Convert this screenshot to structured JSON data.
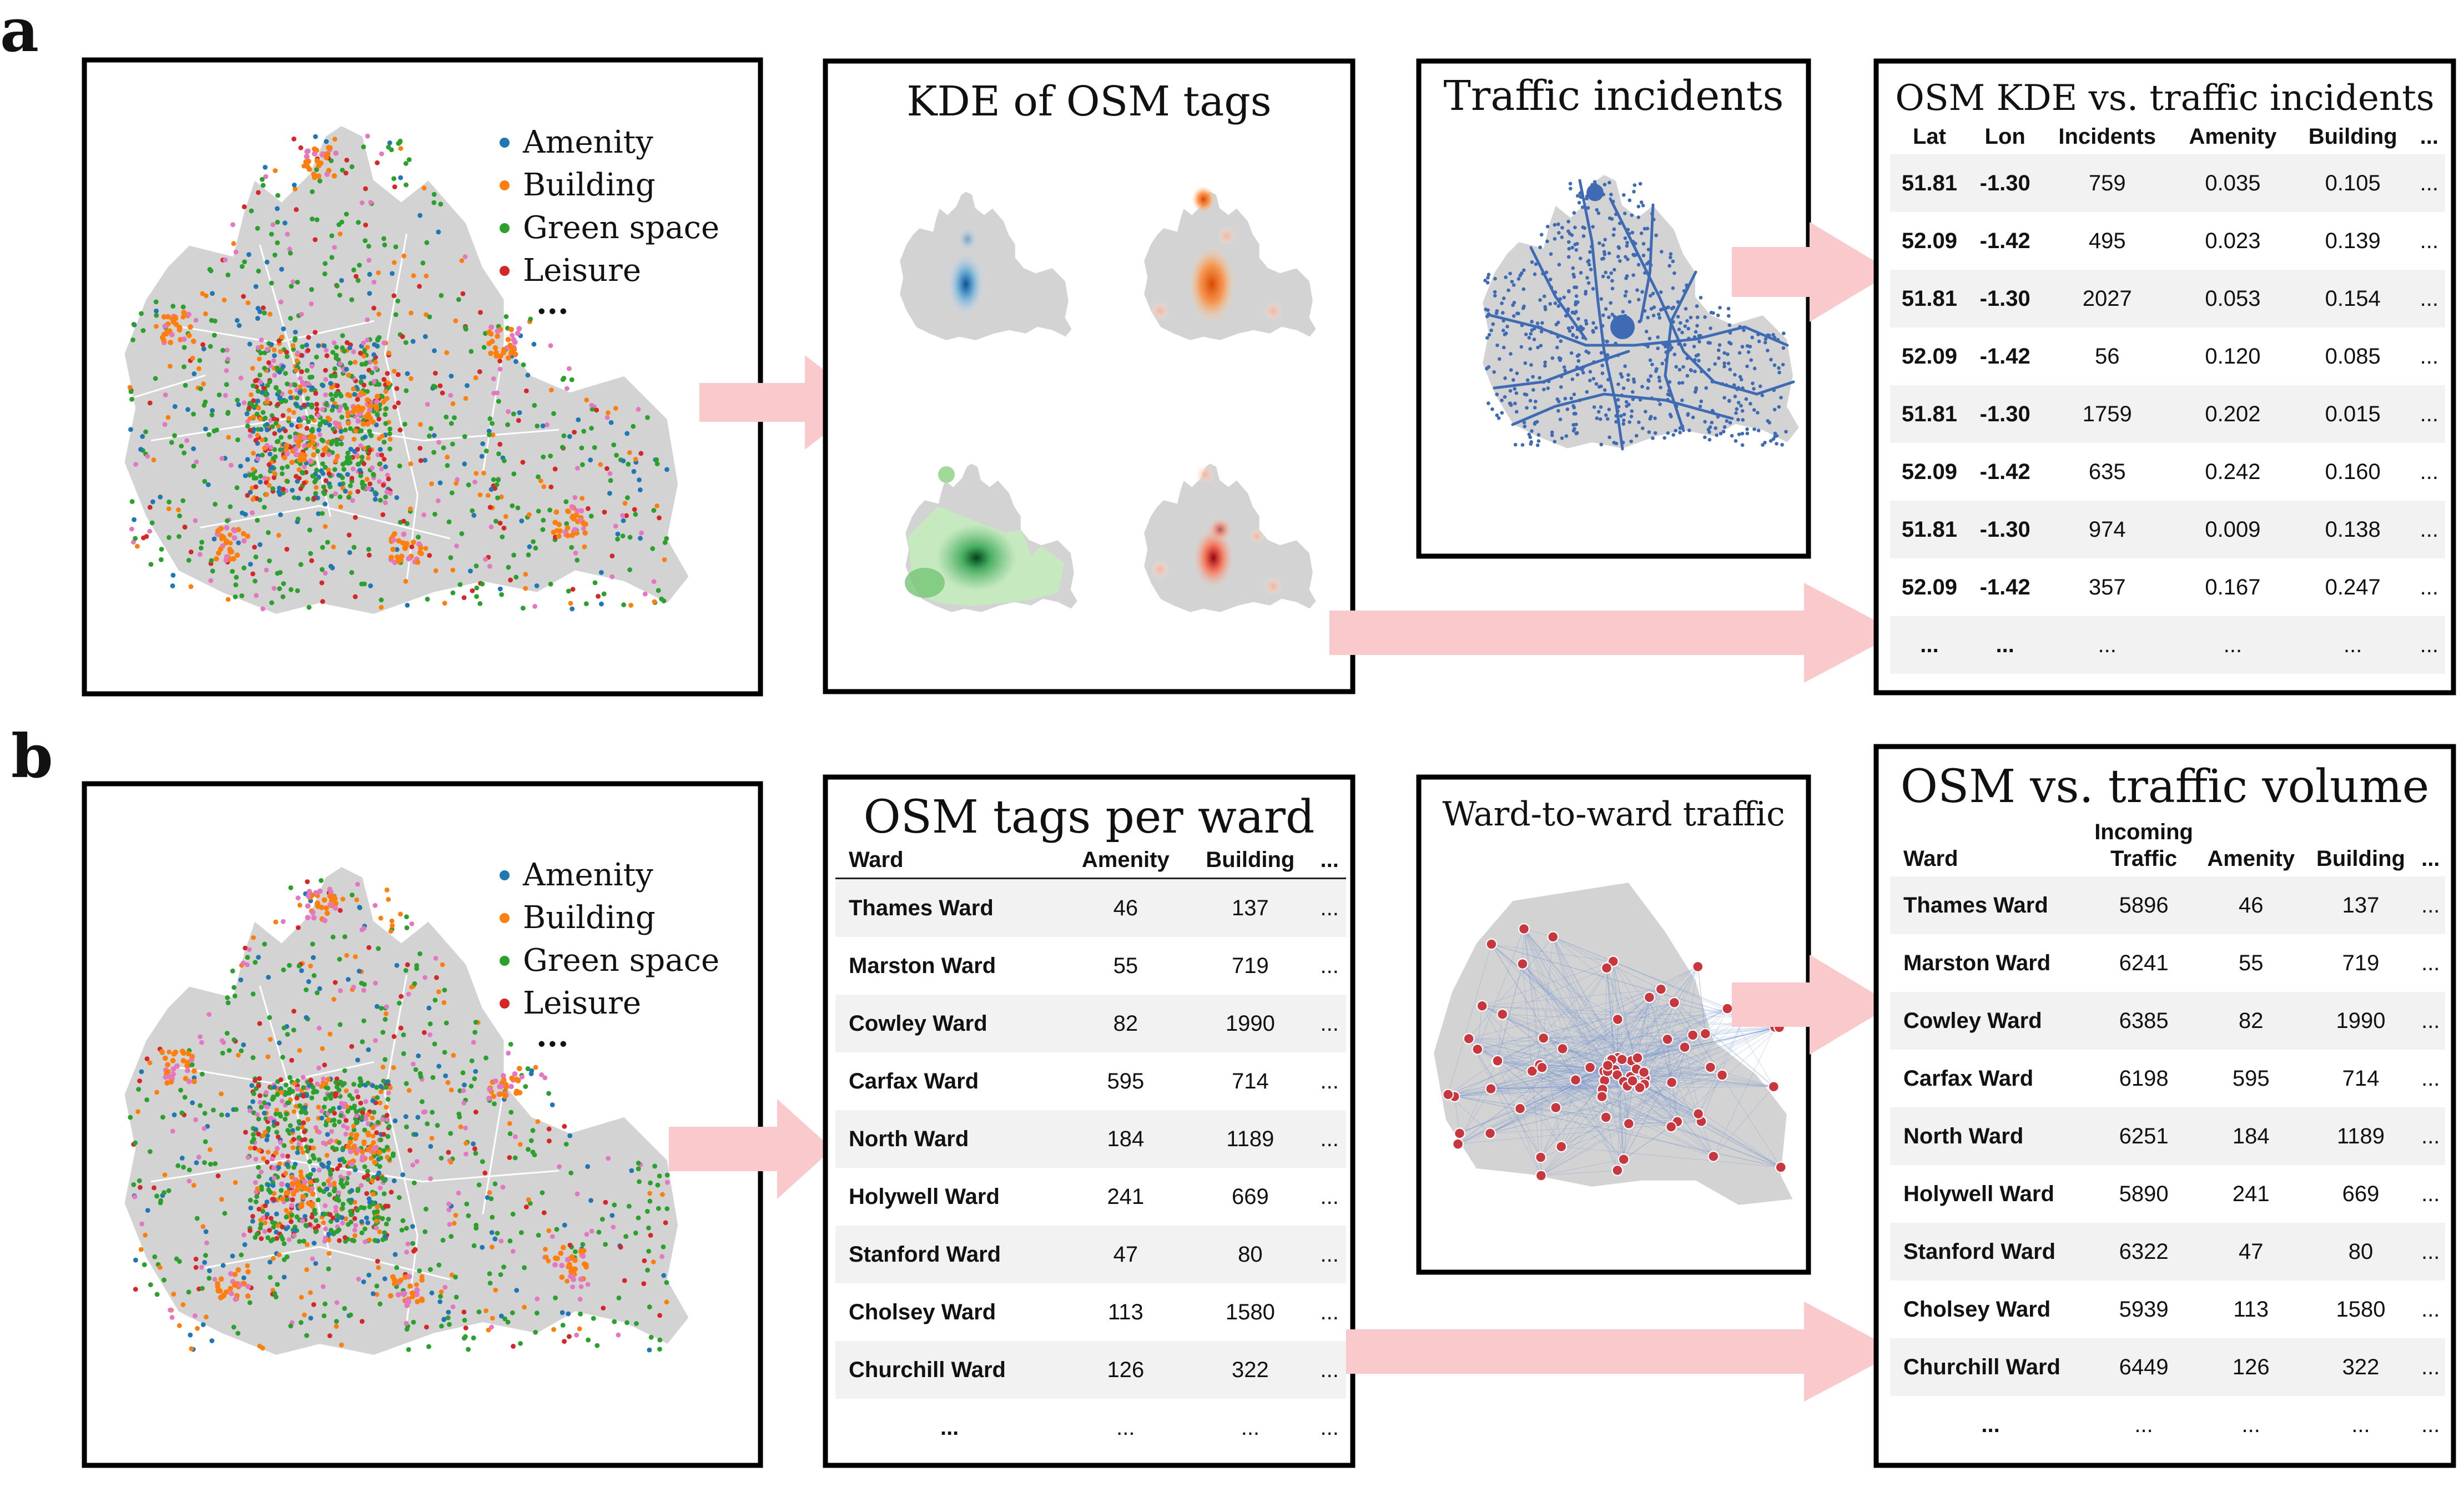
{
  "panels": {
    "a": "a",
    "b": "b"
  },
  "legend": {
    "items": [
      {
        "label": "Amenity",
        "color": "#1f77b4"
      },
      {
        "label": "Building",
        "color": "#ff7f0e"
      },
      {
        "label": "Green space",
        "color": "#2ca02c"
      },
      {
        "label": "Leisure",
        "color": "#d62728"
      }
    ],
    "more": "..."
  },
  "a": {
    "kde_title": "KDE of OSM tags",
    "traffic_title": "Traffic incidents",
    "table_title": "OSM KDE vs. traffic incidents",
    "table": {
      "columns": [
        "Lat",
        "Lon",
        "Incidents",
        "Amenity",
        "Building",
        "..."
      ],
      "rows": [
        [
          "51.81",
          "-1.30",
          "759",
          "0.035",
          "0.105",
          "..."
        ],
        [
          "52.09",
          "-1.42",
          "495",
          "0.023",
          "0.139",
          "..."
        ],
        [
          "51.81",
          "-1.30",
          "2027",
          "0.053",
          "0.154",
          "..."
        ],
        [
          "52.09",
          "-1.42",
          "56",
          "0.120",
          "0.085",
          "..."
        ],
        [
          "51.81",
          "-1.30",
          "1759",
          "0.202",
          "0.015",
          "..."
        ],
        [
          "52.09",
          "-1.42",
          "635",
          "0.242",
          "0.160",
          "..."
        ],
        [
          "51.81",
          "-1.30",
          "974",
          "0.009",
          "0.138",
          "..."
        ],
        [
          "52.09",
          "-1.42",
          "357",
          "0.167",
          "0.247",
          "..."
        ],
        [
          "...",
          "...",
          "...",
          "...",
          "...",
          "..."
        ]
      ]
    }
  },
  "b": {
    "ward_title": "OSM tags per ward",
    "ward_table": {
      "columns": [
        "Ward",
        "Amenity",
        "Building",
        "..."
      ],
      "rows": [
        [
          "Thames Ward",
          "46",
          "137",
          "..."
        ],
        [
          "Marston Ward",
          "55",
          "719",
          "..."
        ],
        [
          "Cowley Ward",
          "82",
          "1990",
          "..."
        ],
        [
          "Carfax Ward",
          "595",
          "714",
          "..."
        ],
        [
          "North Ward",
          "184",
          "1189",
          "..."
        ],
        [
          "Holywell Ward",
          "241",
          "669",
          "..."
        ],
        [
          "Stanford Ward",
          "47",
          "80",
          "..."
        ],
        [
          "Cholsey Ward",
          "113",
          "1580",
          "..."
        ],
        [
          "Churchill Ward",
          "126",
          "322",
          "..."
        ],
        [
          "...",
          "...",
          "...",
          "..."
        ]
      ]
    },
    "traffic_title": "Ward-to-ward traffic",
    "volume_title": "OSM vs. traffic volume",
    "volume_table": {
      "columns": [
        "Ward",
        "Incoming Traffic",
        "Amenity",
        "Building",
        "..."
      ],
      "rows": [
        [
          "Thames Ward",
          "5896",
          "46",
          "137",
          "..."
        ],
        [
          "Marston Ward",
          "6241",
          "55",
          "719",
          "..."
        ],
        [
          "Cowley Ward",
          "6385",
          "82",
          "1990",
          "..."
        ],
        [
          "Carfax Ward",
          "6198",
          "595",
          "714",
          "..."
        ],
        [
          "North Ward",
          "6251",
          "184",
          "1189",
          "..."
        ],
        [
          "Holywell Ward",
          "5890",
          "241",
          "669",
          "..."
        ],
        [
          "Stanford Ward",
          "6322",
          "47",
          "80",
          "..."
        ],
        [
          "Cholsey Ward",
          "5939",
          "113",
          "1580",
          "..."
        ],
        [
          "Churchill Ward",
          "6449",
          "126",
          "322",
          "..."
        ],
        [
          "...",
          "...",
          "...",
          "...",
          "..."
        ]
      ]
    }
  },
  "colors": {
    "map_gray": "#d3d3d3",
    "arrow": "#f9c9cc",
    "traffic_blue": "#3f6bb4",
    "node_red": "#c8363e",
    "kde_blue": "#08519c",
    "kde_orange": "#d94801",
    "kde_green": "#00441b",
    "kde_red": "#99000d"
  }
}
